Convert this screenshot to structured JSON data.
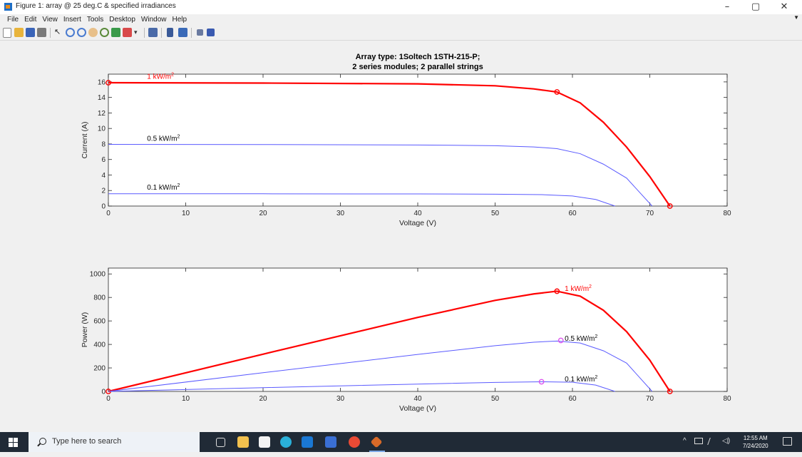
{
  "window": {
    "title": "Figure 1: array @ 25 deg.C & specified irradiances",
    "minimize_glyph": "–",
    "maximize_glyph": "▢",
    "close_glyph": "✕"
  },
  "menu": {
    "items": [
      "File",
      "Edit",
      "View",
      "Insert",
      "Tools",
      "Desktop",
      "Window",
      "Help"
    ]
  },
  "toolbar": {
    "icons": [
      "new-figure-icon",
      "open-file-icon",
      "save-icon",
      "print-icon",
      "pointer-icon",
      "zoom-in-icon",
      "zoom-out-icon",
      "pan-icon",
      "rotate-icon",
      "data-cursor-icon",
      "brush-icon",
      "link-plot-icon",
      "colorbar-icon",
      "legend-icon",
      "hide-plot-tools-icon",
      "show-plot-tools-icon"
    ]
  },
  "chart_data": [
    {
      "type": "line",
      "title": "Array type: 1Soltech 1STH-215-P;",
      "subtitle": "2 series modules; 2 parallel strings",
      "xlabel": "Voltage (V)",
      "ylabel": "Current (A)",
      "xlim": [
        0,
        80
      ],
      "ylim": [
        0,
        17
      ],
      "xticks": [
        0,
        10,
        20,
        30,
        40,
        50,
        60,
        70,
        80
      ],
      "yticks": [
        0,
        2,
        4,
        6,
        8,
        10,
        12,
        14,
        16
      ],
      "grid": false,
      "annotations": [
        {
          "text": "1 kW/m",
          "sup": "2",
          "x": 5,
          "y": 16.4,
          "color": "#ff0000"
        },
        {
          "text": "0.5 kW/m",
          "sup": "2",
          "x": 5,
          "y": 8.4,
          "color": "#000000"
        },
        {
          "text": "0.1 kW/m",
          "sup": "2",
          "x": 5,
          "y": 2.1,
          "color": "#000000"
        }
      ],
      "series": [
        {
          "color": "#ff0000",
          "x": [
            0,
            20,
            40,
            50,
            55,
            58,
            61,
            64,
            67,
            70,
            72.6
          ],
          "y": [
            15.9,
            15.85,
            15.75,
            15.5,
            15.1,
            14.7,
            13.3,
            10.8,
            7.6,
            3.8,
            0
          ],
          "markers": [
            [
              0,
              15.9
            ],
            [
              58,
              14.7
            ],
            [
              72.6,
              0
            ]
          ]
        },
        {
          "color": "#5a5aff",
          "x": [
            0,
            20,
            40,
            50,
            55,
            58,
            61,
            64,
            67,
            70.3
          ],
          "y": [
            7.95,
            7.93,
            7.87,
            7.78,
            7.62,
            7.4,
            6.75,
            5.4,
            3.6,
            0
          ],
          "markers": []
        },
        {
          "color": "#5a5aff",
          "x": [
            0,
            20,
            40,
            50,
            56,
            60,
            63,
            65.5
          ],
          "y": [
            1.59,
            1.58,
            1.56,
            1.53,
            1.47,
            1.3,
            0.85,
            0
          ],
          "markers": []
        }
      ]
    },
    {
      "type": "line",
      "title": "",
      "xlabel": "Voltage (V)",
      "ylabel": "Power (W)",
      "xlim": [
        0,
        80
      ],
      "ylim": [
        0,
        1050
      ],
      "xticks": [
        0,
        10,
        20,
        30,
        40,
        50,
        60,
        70,
        80
      ],
      "yticks": [
        0,
        200,
        400,
        600,
        800,
        1000
      ],
      "grid": false,
      "annotations": [
        {
          "text": "1 kW/m",
          "sup": "2",
          "x": 59,
          "y": 855,
          "color": "#ff0000"
        },
        {
          "text": "0.5 kW/m",
          "sup": "2",
          "x": 59,
          "y": 432,
          "color": "#000000"
        },
        {
          "text": "0.1 kW/m",
          "sup": "2",
          "x": 59,
          "y": 85,
          "color": "#000000"
        }
      ],
      "series": [
        {
          "color": "#ff0000",
          "x": [
            0,
            20,
            40,
            50,
            55,
            58,
            61,
            64,
            67,
            70,
            72.6
          ],
          "y": [
            0,
            317,
            630,
            775,
            830,
            853,
            811,
            691,
            509,
            266,
            0
          ],
          "markers": [
            [
              0,
              0
            ],
            [
              58,
              853
            ],
            [
              72.6,
              0
            ]
          ]
        },
        {
          "color": "#5a5aff",
          "x": [
            0,
            20,
            40,
            50,
            55,
            58,
            61,
            64,
            67,
            70.3
          ],
          "y": [
            0,
            159,
            315,
            389,
            419,
            429,
            412,
            346,
            241,
            0
          ],
          "markers": [
            [
              58.5,
              434
            ]
          ]
        },
        {
          "color": "#5a5aff",
          "x": [
            0,
            20,
            40,
            50,
            56,
            60,
            63,
            65.5
          ],
          "y": [
            0,
            32,
            62,
            77,
            82,
            78,
            54,
            0
          ],
          "markers": [
            [
              56,
              82
            ]
          ]
        }
      ]
    }
  ],
  "taskbar": {
    "search_placeholder": "Type here to search",
    "time": "12:55 AM",
    "date": "7/24/2020",
    "pinned_icons": [
      "task-view-icon",
      "file-explorer-icon",
      "store-icon",
      "edge-icon",
      "mail-icon",
      "word-icon",
      "chrome-icon",
      "matlab-icon"
    ],
    "tray_icons": [
      "show-hidden-icons-icon",
      "network-icon",
      "pen-icon",
      "volume-icon",
      "notifications-icon"
    ]
  }
}
